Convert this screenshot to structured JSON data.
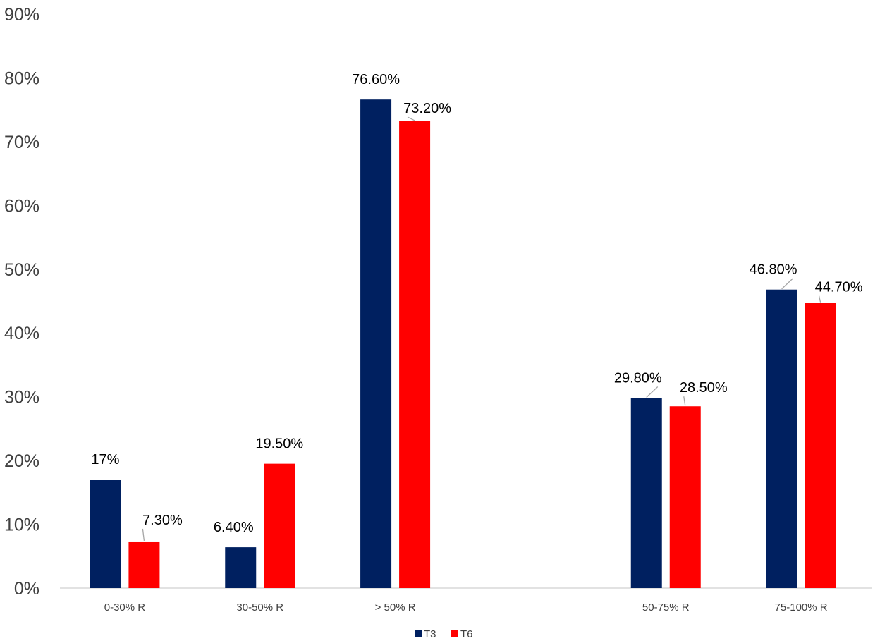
{
  "chart_data": {
    "type": "bar",
    "categories": [
      "0-30% R",
      "30-50% R",
      "> 50% R",
      "",
      "50-75% R",
      "75-100% R"
    ],
    "series": [
      {
        "name": "T3",
        "color": "#002060",
        "values": [
          17.0,
          6.4,
          76.6,
          null,
          29.8,
          46.8
        ],
        "labels": [
          "17%",
          "6.40%",
          "76.60%",
          "",
          "29.80%",
          "46.80%"
        ]
      },
      {
        "name": "T6",
        "color": "#FF0000",
        "values": [
          7.3,
          19.5,
          73.2,
          null,
          28.5,
          44.7
        ],
        "labels": [
          "7.30%",
          "19.50%",
          "73.20%",
          "",
          "28.50%",
          "44.70%"
        ]
      }
    ],
    "y_ticks": [
      "0%",
      "10%",
      "20%",
      "30%",
      "40%",
      "50%",
      "60%",
      "70%",
      "80%",
      "90%"
    ],
    "ylim": [
      0,
      90
    ],
    "grid": false,
    "legend_position": "bottom",
    "axis_color": "#D9D9D9"
  }
}
